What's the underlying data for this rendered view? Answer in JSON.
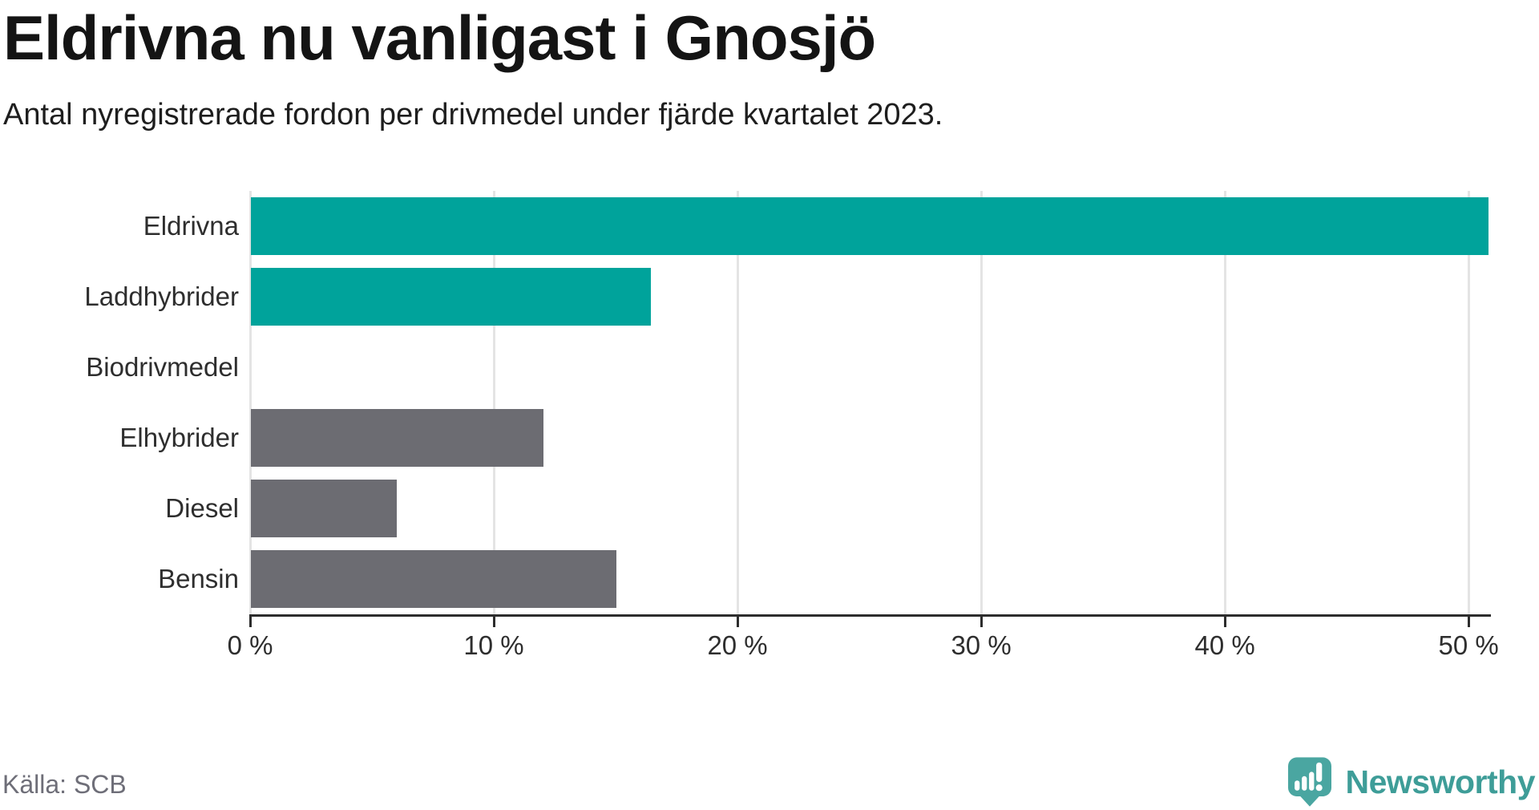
{
  "header": {
    "title": "Eldrivna nu vanligast i Gnosjö",
    "subtitle": "Antal nyregistrerade fordon per drivmedel under fjärde kvartalet 2023."
  },
  "chart_data": {
    "type": "bar",
    "orientation": "horizontal",
    "title": "Eldrivna nu vanligast i Gnosjö",
    "subtitle": "Antal nyregistrerade fordon per drivmedel under fjärde kvartalet 2023.",
    "categories": [
      "Eldrivna",
      "Laddhybrider",
      "Biodrivmedel",
      "Elhybrider",
      "Diesel",
      "Bensin"
    ],
    "values": [
      50.8,
      16.4,
      0,
      12,
      6,
      15
    ],
    "unit": "%",
    "bar_colors": [
      "#00a39b",
      "#00a39b",
      "#6c6c72",
      "#6c6c72",
      "#6c6c72",
      "#6c6c72"
    ],
    "x_ticks": [
      0,
      10,
      20,
      30,
      40,
      50
    ],
    "x_tick_labels": [
      "0 %",
      "10 %",
      "20 %",
      "30 %",
      "40 %",
      "50 %"
    ],
    "xlim": [
      0,
      50.95
    ],
    "grid": "vertical",
    "legend": "none"
  },
  "colors": {
    "accent_teal": "#00a39b",
    "neutral_gray": "#6c6c72",
    "gridline": "#e4e4e4",
    "axis": "#2d2d2d",
    "brand_teal": "#3e9d98",
    "brand_icon_teal": "#4aa6a1"
  },
  "footer": {
    "source": "Källa: SCB",
    "brand": "Newsworthy"
  }
}
